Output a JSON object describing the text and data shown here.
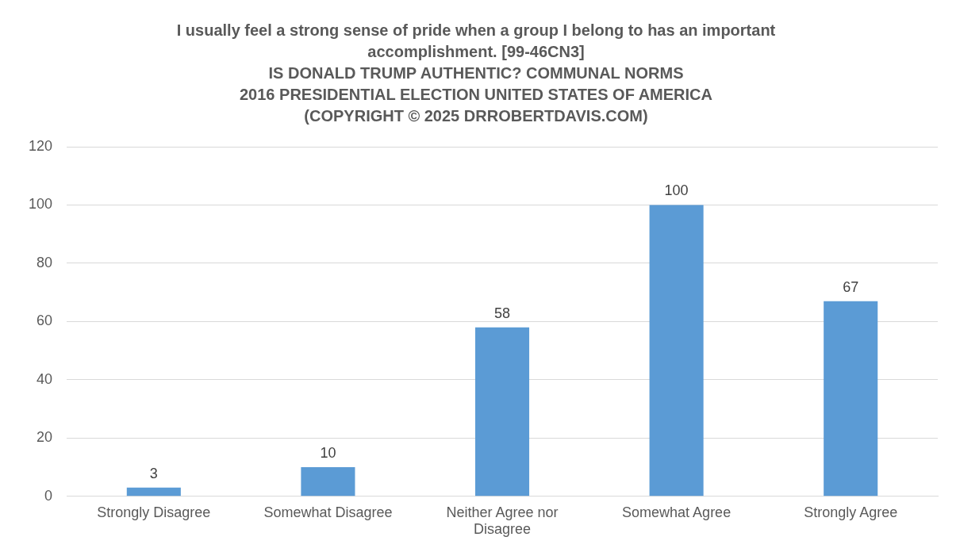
{
  "chart_data": {
    "type": "bar",
    "title": "I usually feel a strong sense of pride when a group I belong to has an important\naccomplishment. [99-46CN3]\nIS DONALD TRUMP AUTHENTIC? COMMUNAL NORMS\n2016 PRESIDENTIAL ELECTION UNITED STATES OF AMERICA\n(COPYRIGHT © 2025 DRROBERTDAVIS.COM)",
    "categories": [
      "Strongly Disagree",
      "Somewhat Disagree",
      "Neither Agree nor Disagree",
      "Somewhat Agree",
      "Strongly Agree"
    ],
    "values": [
      3,
      10,
      58,
      100,
      67
    ],
    "color": "#5b9bd5",
    "ylim": [
      0,
      120
    ],
    "yticks": [
      0,
      20,
      40,
      60,
      80,
      100,
      120
    ],
    "grid": "y",
    "data_labels": true,
    "legend": false
  }
}
